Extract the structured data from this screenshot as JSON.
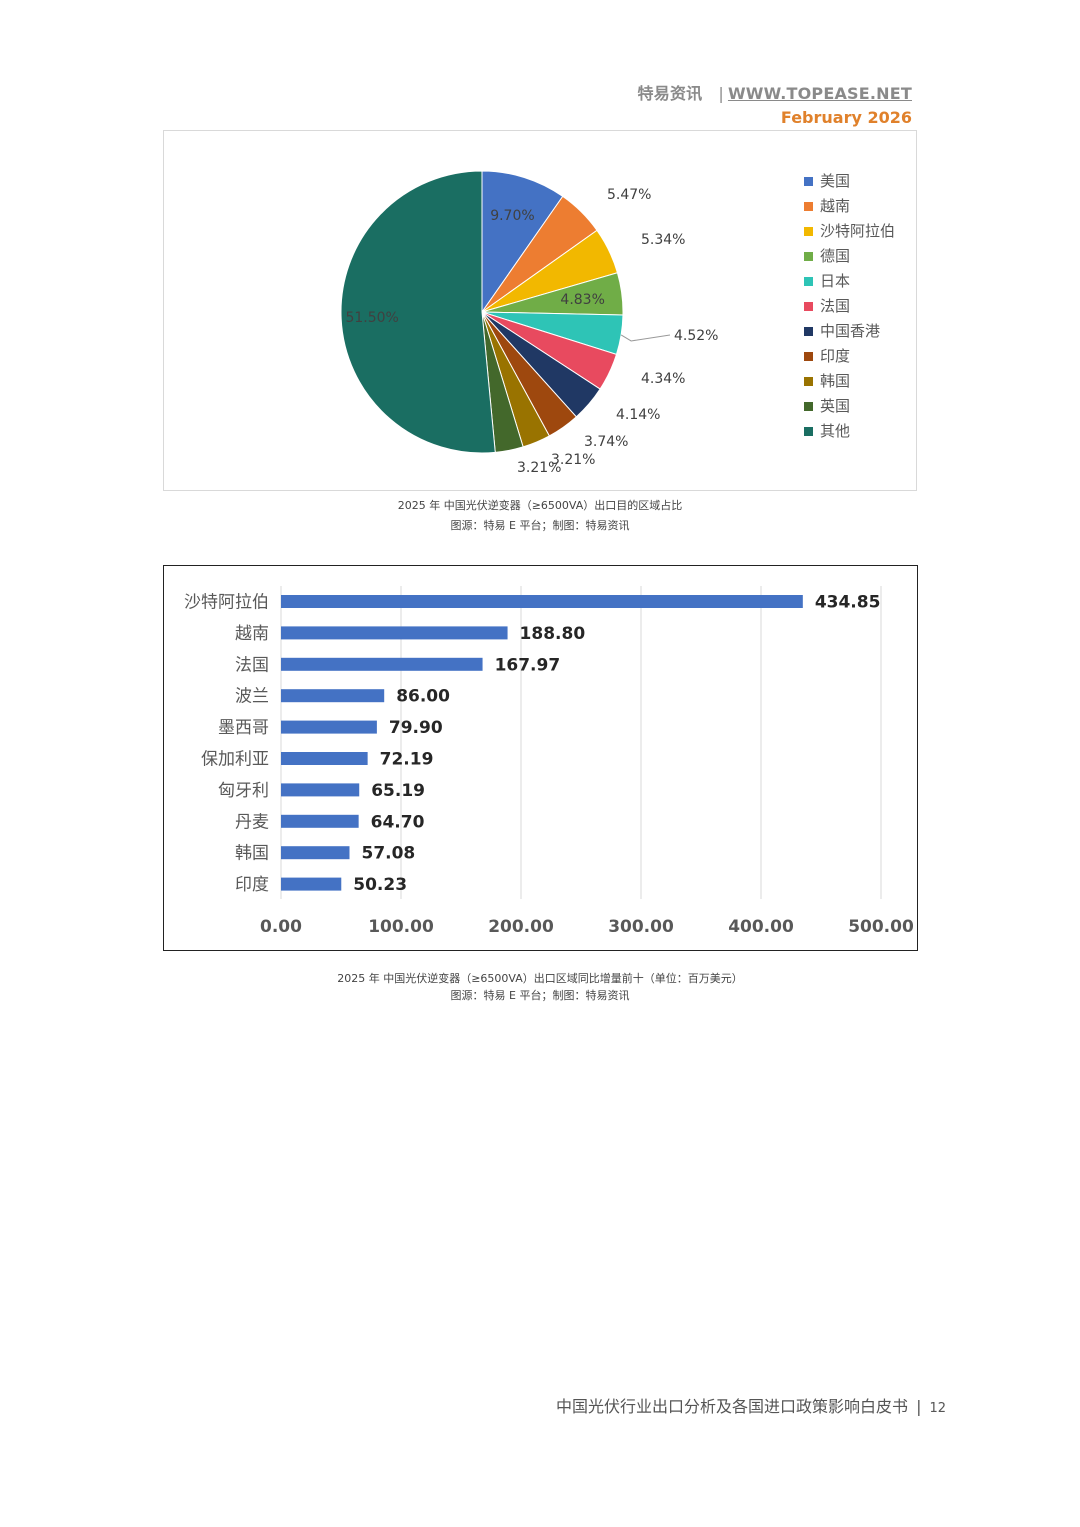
{
  "header": {
    "brand": "特易资讯",
    "separator": "|",
    "site": "WWW.TOPEASE.NET",
    "date": "February  2026"
  },
  "pie_caption": {
    "title": "2025 年 中国光伏逆变器（≥6500VA）出口目的区域占比",
    "source": "图源：特易 E 平台；制图：特易资讯"
  },
  "bar_caption": {
    "title": "2025 年 中国光伏逆变器（≥6500VA）出口区域同比增量前十（单位：百万美元）",
    "source": "图源：特易 E 平台；制图：特易资讯"
  },
  "footer": {
    "title": "中国光伏行业出口分析及各国进口政策影响白皮书",
    "separator": "|",
    "page": "12"
  },
  "chart_data": [
    {
      "type": "pie",
      "categories": [
        "美国",
        "越南",
        "沙特阿拉伯",
        "德国",
        "日本",
        "法国",
        "中国香港",
        "印度",
        "韩国",
        "英国",
        "其他"
      ],
      "values": [
        9.7,
        5.47,
        5.34,
        4.83,
        4.52,
        4.34,
        4.14,
        3.74,
        3.21,
        3.21,
        51.5
      ],
      "labels": [
        "9.70%",
        "5.47%",
        "5.34%",
        "4.83%",
        "4.52%",
        "4.34%",
        "4.14%",
        "3.74%",
        "3.21%",
        "3.21%",
        "51.50%"
      ],
      "colors": [
        "#4472c4",
        "#ed7d31",
        "#f2b800",
        "#70ad47",
        "#2ec4b6",
        "#e84a5f",
        "#203864",
        "#9e480e",
        "#997300",
        "#43682b",
        "#1a6e62"
      ],
      "legend": "right"
    },
    {
      "type": "bar",
      "orientation": "horizontal",
      "categories": [
        "沙特阿拉伯",
        "越南",
        "法国",
        "波兰",
        "墨西哥",
        "保加利亚",
        "匈牙利",
        "丹麦",
        "韩国",
        "印度"
      ],
      "values": [
        434.85,
        188.8,
        167.97,
        86.0,
        79.9,
        72.19,
        65.19,
        64.7,
        57.08,
        50.23
      ],
      "value_labels": [
        "434.85",
        "188.80",
        "167.97",
        "86.00",
        "79.90",
        "72.19",
        "65.19",
        "64.70",
        "57.08",
        "50.23"
      ],
      "xlim": [
        0,
        500
      ],
      "xticks": [
        "0.00",
        "100.00",
        "200.00",
        "300.00",
        "400.00",
        "500.00"
      ],
      "bar_color": "#4472c4",
      "grid": true
    }
  ]
}
